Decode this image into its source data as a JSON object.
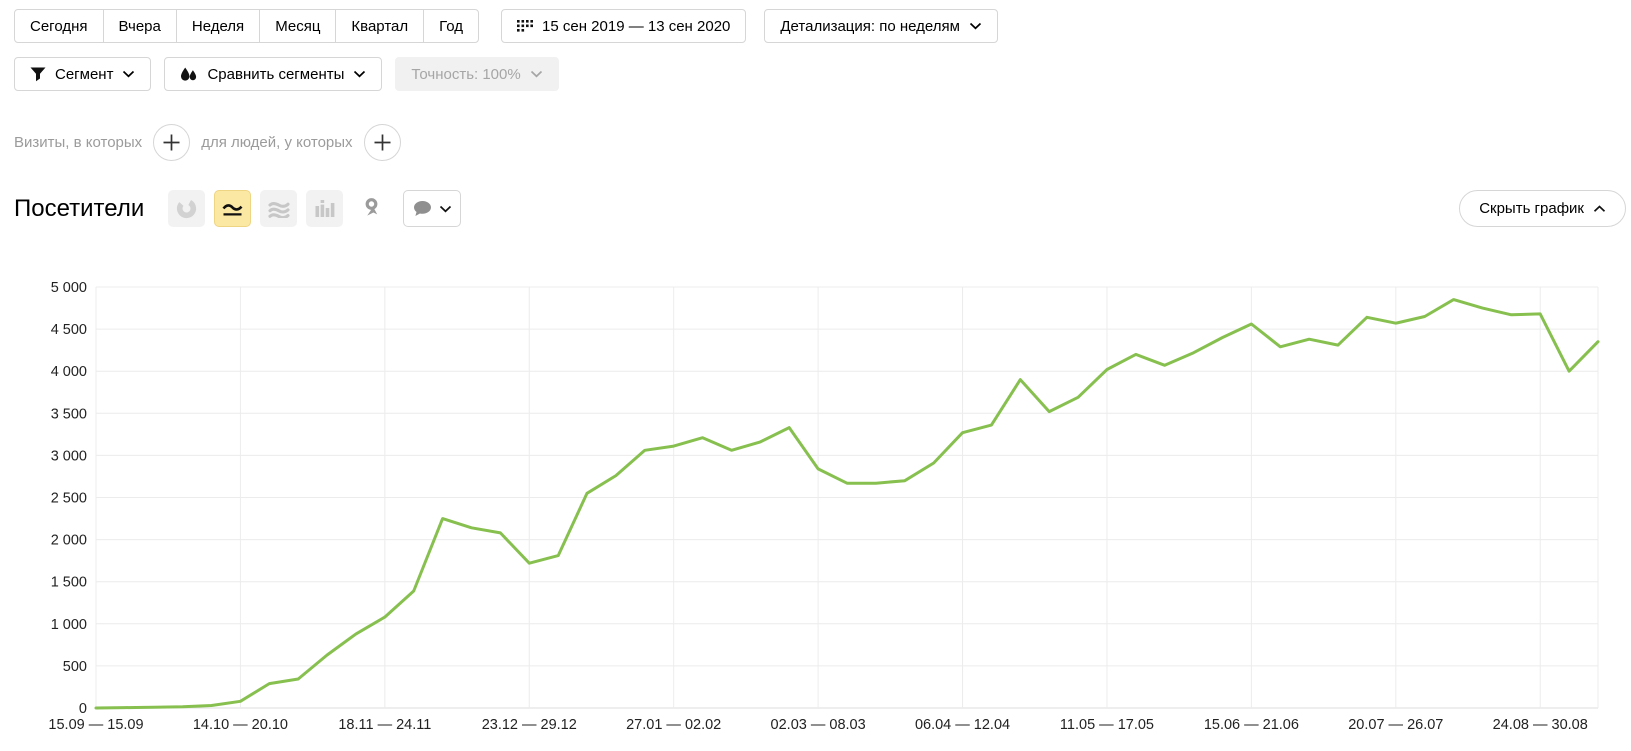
{
  "toolbar": {
    "presets": [
      "Сегодня",
      "Вчера",
      "Неделя",
      "Месяц",
      "Квартал",
      "Год"
    ],
    "date_range": "15 сен 2019 — 13 сен 2020",
    "detalization": "Детализация: по неделям",
    "segment": "Сегмент",
    "compare_segments": "Сравнить сегменты",
    "accuracy": "Точность: 100%"
  },
  "filters": {
    "visits": "Визиты, в которых",
    "people": "для людей, у которых"
  },
  "section": {
    "title": "Посетители",
    "hide_chart": "Скрыть график"
  },
  "icons": {
    "calendar_icon": "dots-grid",
    "segment_icon": "funnel",
    "compare_icon": "two-drops",
    "chart_type_icons": [
      "pie-chart",
      "line-chart",
      "stacked-area",
      "columns",
      "person-pin"
    ],
    "comment_icon": "speech-bubble",
    "plus_icon": "+"
  },
  "chart_data": {
    "type": "line",
    "title": "Посетители",
    "series_name": "Посетители",
    "series_color": "#87c04f",
    "ylim": [
      0,
      5000
    ],
    "ytick_step": 500,
    "ytick_labels": [
      "0",
      "500",
      "1 000",
      "1 500",
      "2 000",
      "2 500",
      "3 000",
      "3 500",
      "4 000",
      "4 500",
      "5 000"
    ],
    "x_tick_indices": [
      0,
      5,
      10,
      15,
      20,
      25,
      30,
      35,
      40,
      45,
      50
    ],
    "x_tick_labels": [
      "15.09 — 15.09",
      "14.10 — 20.10",
      "18.11 — 24.11",
      "23.12 — 29.12",
      "27.01 — 02.02",
      "02.03 — 08.03",
      "06.04 — 12.04",
      "11.05 — 17.05",
      "15.06 — 21.06",
      "20.07 — 26.07",
      "24.08 — 30.08"
    ],
    "grid": true,
    "legend": false,
    "values": [
      0,
      5,
      10,
      15,
      30,
      80,
      290,
      345,
      630,
      880,
      1080,
      1390,
      2250,
      2140,
      2080,
      1720,
      1810,
      2550,
      2760,
      3060,
      3110,
      3210,
      3060,
      3160,
      3330,
      2840,
      2670,
      2670,
      2700,
      2910,
      3270,
      3360,
      3900,
      3520,
      3690,
      4020,
      4200,
      4070,
      4220,
      4400,
      4560,
      4290,
      4380,
      4310,
      4640,
      4570,
      4650,
      4850,
      4750,
      4670,
      4680,
      4000,
      4350
    ]
  }
}
